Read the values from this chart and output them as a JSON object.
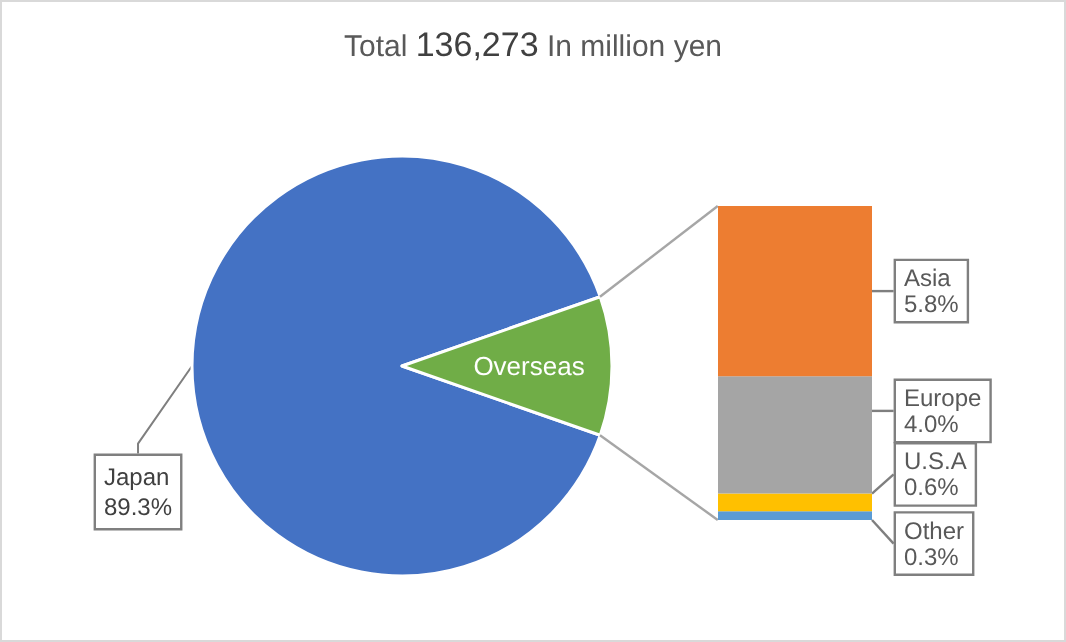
{
  "chart_data": [
    {
      "type": "pie",
      "title": "Total 136,273 In million yen",
      "categories": [
        "Japan",
        "Overseas"
      ],
      "values": [
        89.3,
        10.7
      ],
      "colors": [
        "#4472c4",
        "#70ad47"
      ],
      "value_labels": [
        "89.3%",
        null
      ],
      "legend": false
    },
    {
      "type": "bar",
      "stacked": true,
      "categories": [
        null
      ],
      "legend": false,
      "series": [
        {
          "name": "Other",
          "color": "#5b9bd5",
          "values": [
            0.3
          ],
          "value_labels": [
            "0.3%"
          ]
        },
        {
          "name": "U.S.A",
          "color": "#ffc000",
          "values": [
            0.6
          ],
          "value_labels": [
            "0.6%"
          ]
        },
        {
          "name": "Europe",
          "color": "#a5a5a5",
          "values": [
            4.0
          ],
          "value_labels": [
            "4.0%"
          ]
        },
        {
          "name": "Asia",
          "color": "#ed7d31",
          "values": [
            5.8
          ],
          "value_labels": [
            "5.8%"
          ]
        }
      ]
    }
  ]
}
